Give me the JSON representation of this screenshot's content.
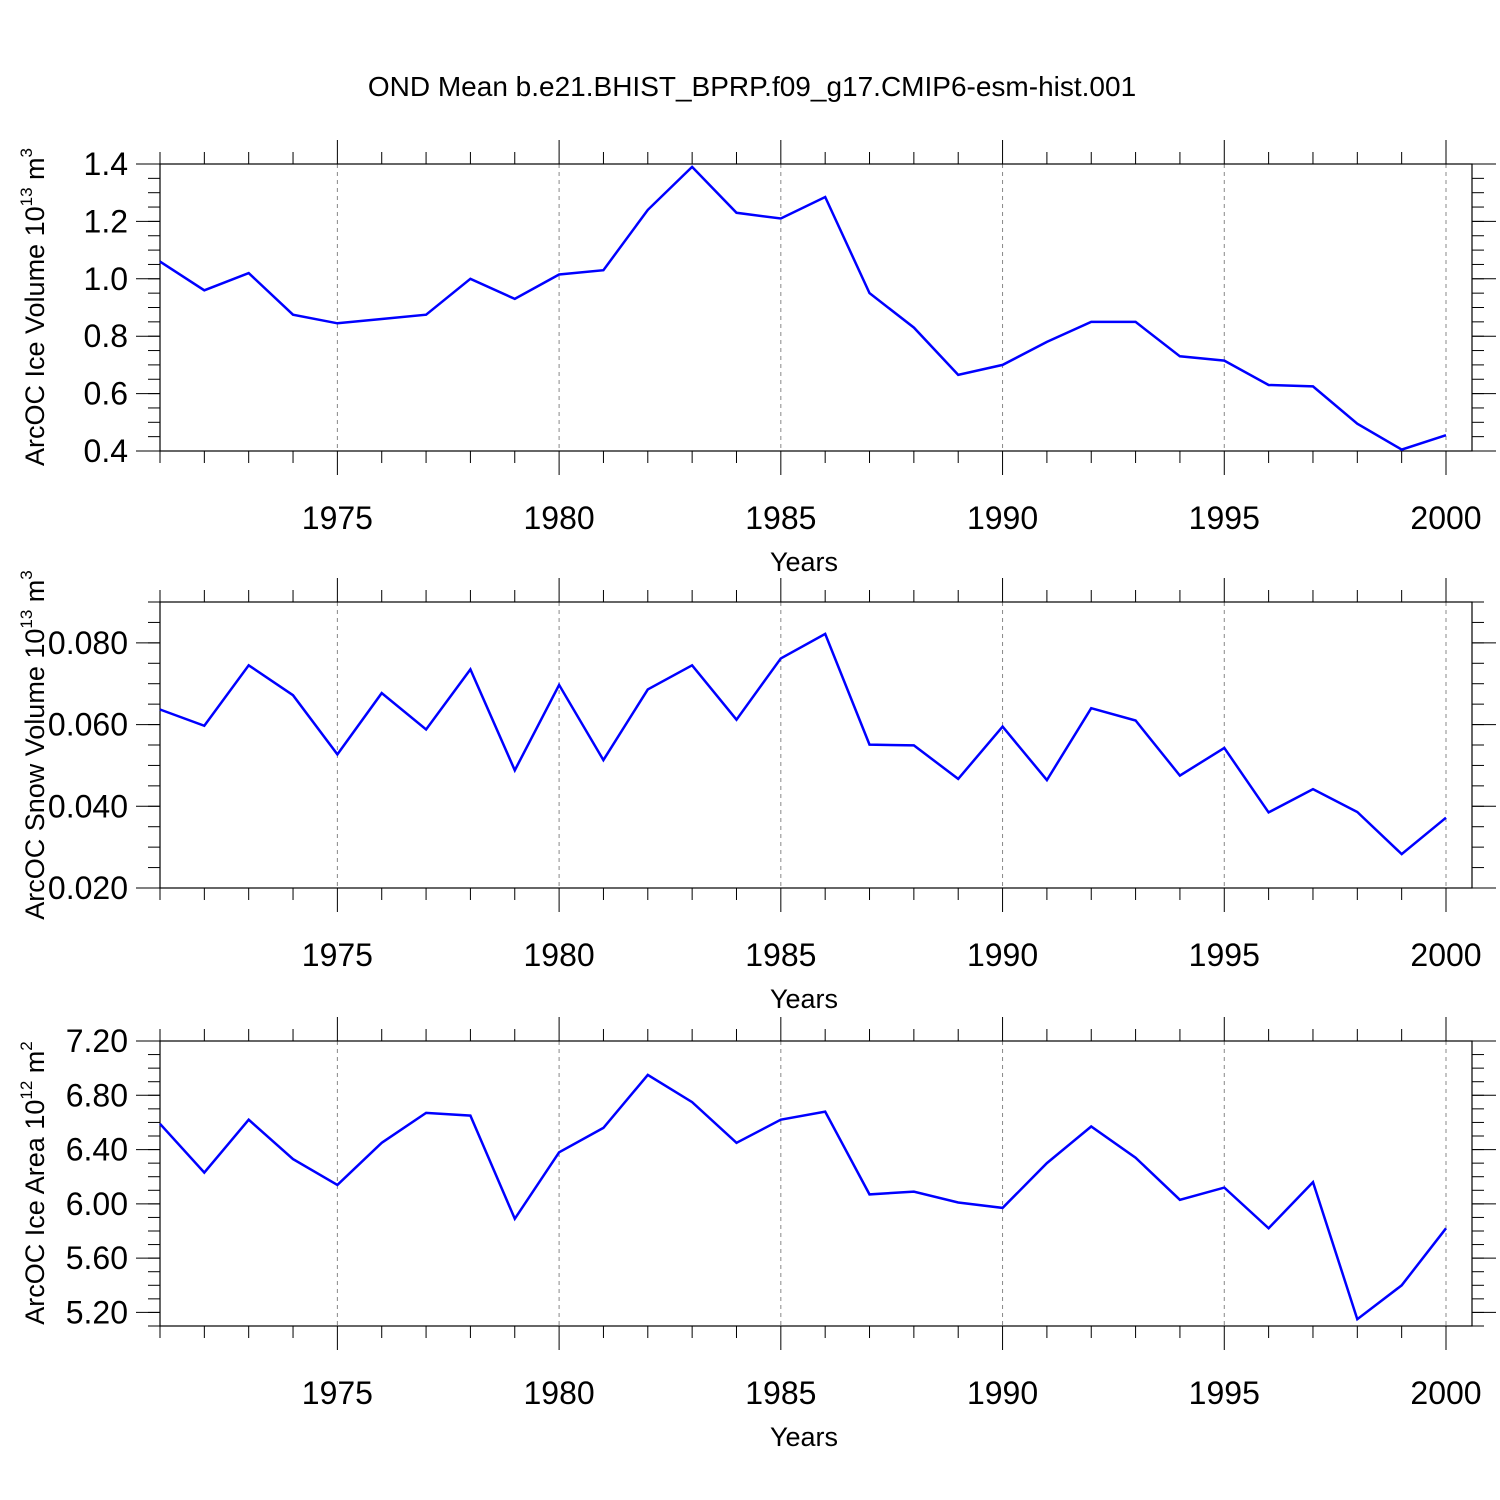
{
  "title": "OND Mean b.e21.BHIST_BPRP.f09_g17.CMIP6-esm-hist.001",
  "line_color": "#0000ff",
  "chart_data": [
    {
      "type": "line",
      "ylabel": "ArcOC Ice Volume 10",
      "ylabel_sup": "13",
      "ylabel_unit": "m",
      "ylabel_unit_sup": "3",
      "xlabel": "Years",
      "xlim": [
        1971,
        2000
      ],
      "ylim": [
        0.4,
        1.4
      ],
      "yticks": [
        "0.4",
        "0.6",
        "0.8",
        "1.0",
        "1.2",
        "1.4"
      ],
      "xticks": [
        "1975",
        "1980",
        "1985",
        "1990",
        "1995",
        "2000"
      ],
      "x": [
        1971,
        1972,
        1973,
        1974,
        1975,
        1976,
        1977,
        1978,
        1979,
        1980,
        1981,
        1982,
        1983,
        1984,
        1985,
        1986,
        1987,
        1988,
        1989,
        1990,
        1991,
        1992,
        1993,
        1994,
        1995,
        1996,
        1997,
        1998,
        1999,
        2000
      ],
      "values": [
        1.06,
        0.96,
        1.02,
        0.875,
        0.845,
        0.86,
        0.875,
        1.0,
        0.93,
        1.015,
        1.03,
        1.24,
        1.39,
        1.23,
        1.21,
        1.285,
        0.95,
        0.83,
        0.665,
        0.7,
        0.78,
        0.85,
        0.85,
        0.73,
        0.715,
        0.63,
        0.625,
        0.495,
        0.405,
        0.455
      ]
    },
    {
      "type": "line",
      "ylabel": "ArcOC Snow Volume 10",
      "ylabel_sup": "13",
      "ylabel_unit": "m",
      "ylabel_unit_sup": "3",
      "xlabel": "Years",
      "xlim": [
        1971,
        2000
      ],
      "ylim": [
        0.02,
        0.09
      ],
      "yticks": [
        "0.020",
        "0.040",
        "0.060",
        "0.080"
      ],
      "xticks": [
        "1975",
        "1980",
        "1985",
        "1990",
        "1995",
        "2000"
      ],
      "x": [
        1971,
        1972,
        1973,
        1974,
        1975,
        1976,
        1977,
        1978,
        1979,
        1980,
        1981,
        1982,
        1983,
        1984,
        1985,
        1986,
        1987,
        1988,
        1989,
        1990,
        1991,
        1992,
        1993,
        1994,
        1995,
        1996,
        1997,
        1998,
        1999,
        2000
      ],
      "values": [
        0.0637,
        0.0597,
        0.0745,
        0.0672,
        0.0527,
        0.0677,
        0.0588,
        0.0735,
        0.0488,
        0.0697,
        0.0513,
        0.0686,
        0.0745,
        0.0612,
        0.0762,
        0.0822,
        0.0551,
        0.0549,
        0.0467,
        0.0595,
        0.0464,
        0.064,
        0.061,
        0.0475,
        0.0543,
        0.0385,
        0.0442,
        0.0386,
        0.0283,
        0.0372
      ]
    },
    {
      "type": "line",
      "ylabel": "ArcOC Ice Area 10",
      "ylabel_sup": "12",
      "ylabel_unit": "m",
      "ylabel_unit_sup": "2",
      "xlabel": "Years",
      "xlim": [
        1971,
        2000
      ],
      "ylim": [
        5.1,
        7.2
      ],
      "yticks": [
        "5.20",
        "5.60",
        "6.00",
        "6.40",
        "6.80",
        "7.20"
      ],
      "xticks": [
        "1975",
        "1980",
        "1985",
        "1990",
        "1995",
        "2000"
      ],
      "x": [
        1971,
        1972,
        1973,
        1974,
        1975,
        1976,
        1977,
        1978,
        1979,
        1980,
        1981,
        1982,
        1983,
        1984,
        1985,
        1986,
        1987,
        1988,
        1989,
        1990,
        1991,
        1992,
        1993,
        1994,
        1995,
        1996,
        1997,
        1998,
        1999,
        2000
      ],
      "values": [
        6.59,
        6.23,
        6.62,
        6.33,
        6.14,
        6.45,
        6.67,
        6.65,
        5.89,
        6.38,
        6.56,
        6.95,
        6.75,
        6.45,
        6.62,
        6.68,
        6.07,
        6.09,
        6.01,
        5.97,
        6.3,
        6.57,
        6.34,
        6.03,
        6.12,
        5.82,
        6.16,
        5.15,
        5.4,
        5.82
      ]
    }
  ]
}
